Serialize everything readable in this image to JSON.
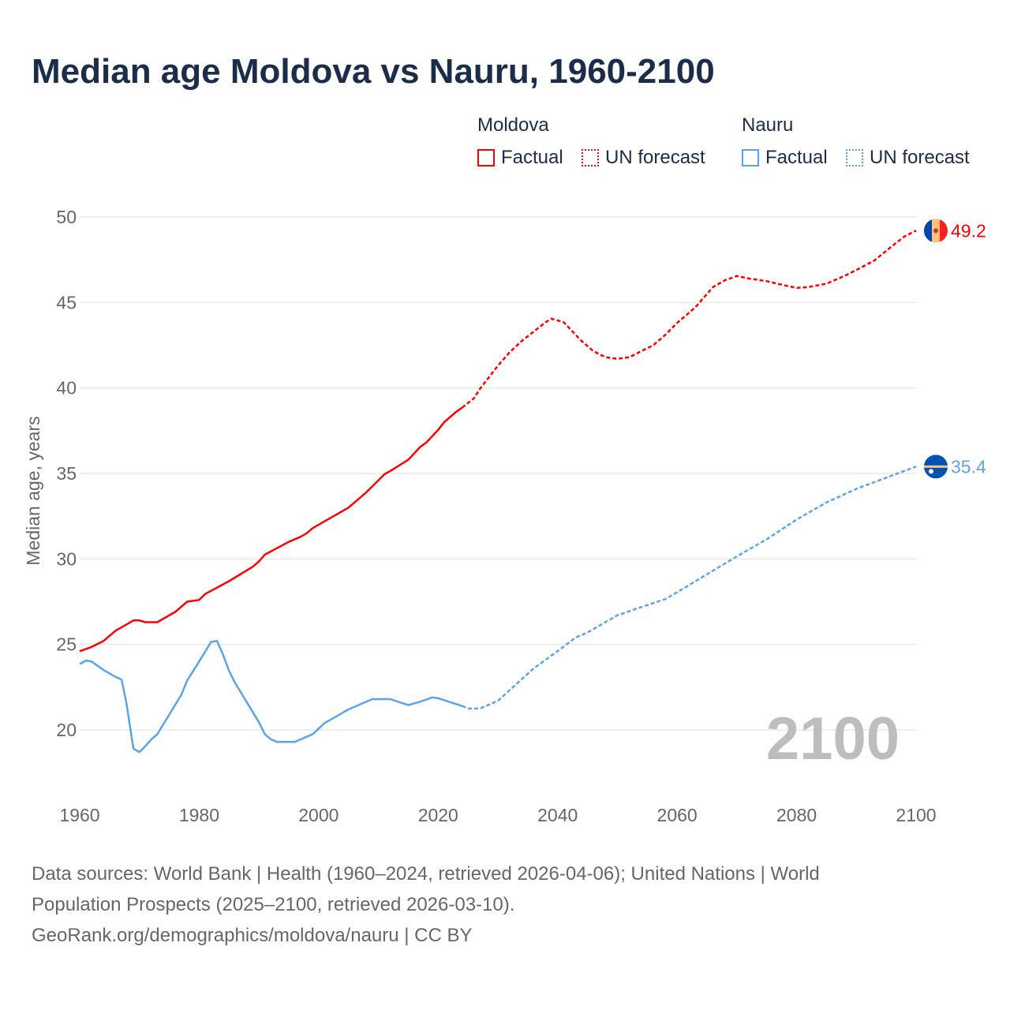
{
  "title": "Median age Moldova vs Nauru, 1960-2100",
  "legend": {
    "moldova": {
      "name": "Moldova",
      "factual": "Factual",
      "forecast": "UN forecast",
      "color": "#ff0000"
    },
    "nauru": {
      "name": "Nauru",
      "factual": "Factual",
      "forecast": "UN forecast",
      "color": "#5ba4e6"
    }
  },
  "year_watermark": "2100",
  "source_lines": [
    "Data sources: World Bank | Health (1960–2024, retrieved 2026-04-06); United Nations | World",
    "Population Prospects (2025–2100, retrieved 2026-03-10).",
    "GeoRank.org/demographics/moldova/nauru | CC BY"
  ],
  "chart_data": {
    "type": "line",
    "title": "Median age Moldova vs Nauru, 1960-2100",
    "xlabel": "",
    "ylabel": "Median age, years",
    "xlim": [
      1960,
      2100
    ],
    "ylim": [
      17,
      50
    ],
    "xticks": [
      "1960",
      "1980",
      "2000",
      "2020",
      "2040",
      "2060",
      "2080",
      "2100"
    ],
    "yticks": [
      "20",
      "25",
      "30",
      "35",
      "40",
      "45",
      "50"
    ],
    "grid": true,
    "legend_position": "top-right",
    "series": [
      {
        "name": "Moldova",
        "color": "#ff0000",
        "end_label": "49.2",
        "factual": [
          [
            1960,
            24.6
          ],
          [
            1962,
            24.85
          ],
          [
            1964,
            25.2
          ],
          [
            1966,
            25.8
          ],
          [
            1968,
            26.2
          ],
          [
            1969,
            26.4
          ],
          [
            1970,
            26.4
          ],
          [
            1971,
            26.3
          ],
          [
            1973,
            26.3
          ],
          [
            1976,
            26.9
          ],
          [
            1978,
            27.5
          ],
          [
            1980,
            27.6
          ],
          [
            1981,
            27.95
          ],
          [
            1985,
            28.7
          ],
          [
            1989,
            29.55
          ],
          [
            1990,
            29.85
          ],
          [
            1991,
            30.25
          ],
          [
            1995,
            31.0
          ],
          [
            1997,
            31.3
          ],
          [
            1998,
            31.5
          ],
          [
            1999,
            31.8
          ],
          [
            2005,
            33.0
          ],
          [
            2008,
            33.9
          ],
          [
            2010,
            34.6
          ],
          [
            2011,
            34.95
          ],
          [
            2012,
            35.15
          ],
          [
            2015,
            35.8
          ],
          [
            2017,
            36.55
          ],
          [
            2018,
            36.8
          ],
          [
            2020,
            37.55
          ],
          [
            2021,
            38.0
          ],
          [
            2023,
            38.6
          ],
          [
            2024,
            38.85
          ]
        ],
        "forecast": [
          [
            2024,
            38.85
          ],
          [
            2026,
            39.4
          ],
          [
            2027,
            39.95
          ],
          [
            2030,
            41.3
          ],
          [
            2032,
            42.1
          ],
          [
            2034,
            42.75
          ],
          [
            2036,
            43.3
          ],
          [
            2038,
            43.85
          ],
          [
            2039,
            44.05
          ],
          [
            2041,
            43.85
          ],
          [
            2044,
            42.75
          ],
          [
            2046,
            42.15
          ],
          [
            2048,
            41.8
          ],
          [
            2050,
            41.7
          ],
          [
            2052,
            41.8
          ],
          [
            2054,
            42.15
          ],
          [
            2056,
            42.5
          ],
          [
            2058,
            43.1
          ],
          [
            2060,
            43.8
          ],
          [
            2063,
            44.7
          ],
          [
            2066,
            45.9
          ],
          [
            2068,
            46.3
          ],
          [
            2070,
            46.55
          ],
          [
            2072,
            46.4
          ],
          [
            2075,
            46.25
          ],
          [
            2078,
            46.0
          ],
          [
            2080,
            45.85
          ],
          [
            2082,
            45.9
          ],
          [
            2085,
            46.1
          ],
          [
            2088,
            46.55
          ],
          [
            2090,
            46.9
          ],
          [
            2093,
            47.45
          ],
          [
            2096,
            48.3
          ],
          [
            2098,
            48.85
          ],
          [
            2100,
            49.2
          ]
        ]
      },
      {
        "name": "Nauru",
        "color": "#5ba4e6",
        "end_label": "35.4",
        "factual": [
          [
            1960,
            23.85
          ],
          [
            1961,
            24.05
          ],
          [
            1962,
            24.0
          ],
          [
            1964,
            23.5
          ],
          [
            1966,
            23.1
          ],
          [
            1967,
            22.95
          ],
          [
            1967.8,
            21.6
          ],
          [
            1969,
            18.9
          ],
          [
            1970,
            18.7
          ],
          [
            1971,
            19.05
          ],
          [
            1972,
            19.45
          ],
          [
            1973,
            19.75
          ],
          [
            1975,
            20.9
          ],
          [
            1977,
            22.05
          ],
          [
            1978,
            22.9
          ],
          [
            1980,
            24.0
          ],
          [
            1982,
            25.15
          ],
          [
            1983,
            25.2
          ],
          [
            1984,
            24.4
          ],
          [
            1985,
            23.45
          ],
          [
            1986,
            22.75
          ],
          [
            1988,
            21.6
          ],
          [
            1990,
            20.45
          ],
          [
            1991,
            19.75
          ],
          [
            1992,
            19.45
          ],
          [
            1993,
            19.3
          ],
          [
            1996,
            19.3
          ],
          [
            1998,
            19.6
          ],
          [
            1999,
            19.75
          ],
          [
            2001,
            20.4
          ],
          [
            2003,
            20.8
          ],
          [
            2005,
            21.2
          ],
          [
            2007,
            21.5
          ],
          [
            2009,
            21.8
          ],
          [
            2012,
            21.8
          ],
          [
            2015,
            21.45
          ],
          [
            2017,
            21.65
          ],
          [
            2019,
            21.9
          ],
          [
            2020,
            21.85
          ],
          [
            2024,
            21.4
          ]
        ],
        "forecast": [
          [
            2024,
            21.4
          ],
          [
            2025,
            21.25
          ],
          [
            2027,
            21.25
          ],
          [
            2030,
            21.7
          ],
          [
            2033,
            22.65
          ],
          [
            2036,
            23.6
          ],
          [
            2040,
            24.6
          ],
          [
            2043,
            25.4
          ],
          [
            2045,
            25.7
          ],
          [
            2050,
            26.7
          ],
          [
            2055,
            27.3
          ],
          [
            2058,
            27.65
          ],
          [
            2060,
            28.05
          ],
          [
            2065,
            29.1
          ],
          [
            2070,
            30.15
          ],
          [
            2075,
            31.15
          ],
          [
            2080,
            32.3
          ],
          [
            2085,
            33.3
          ],
          [
            2090,
            34.1
          ],
          [
            2095,
            34.75
          ],
          [
            2100,
            35.4
          ]
        ]
      }
    ]
  }
}
